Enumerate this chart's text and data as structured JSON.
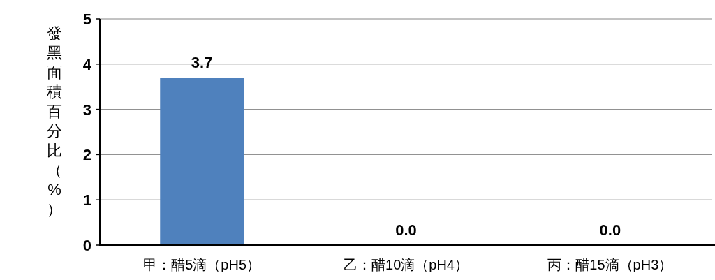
{
  "chart_data": {
    "type": "bar",
    "ylabel": "發黑面積百分比（%）",
    "categories": [
      "甲：醋5滴（pH5）",
      "乙：醋10滴（pH4）",
      "丙：醋15滴（pH3）"
    ],
    "values": [
      3.7,
      0,
      0
    ],
    "value_labels": [
      "3.7",
      "0.0",
      "0.0"
    ],
    "color": "#4f81bd",
    "ylim": [
      0,
      5
    ],
    "yticks": [
      0,
      1,
      2,
      3,
      4,
      5
    ],
    "grid": "y"
  }
}
